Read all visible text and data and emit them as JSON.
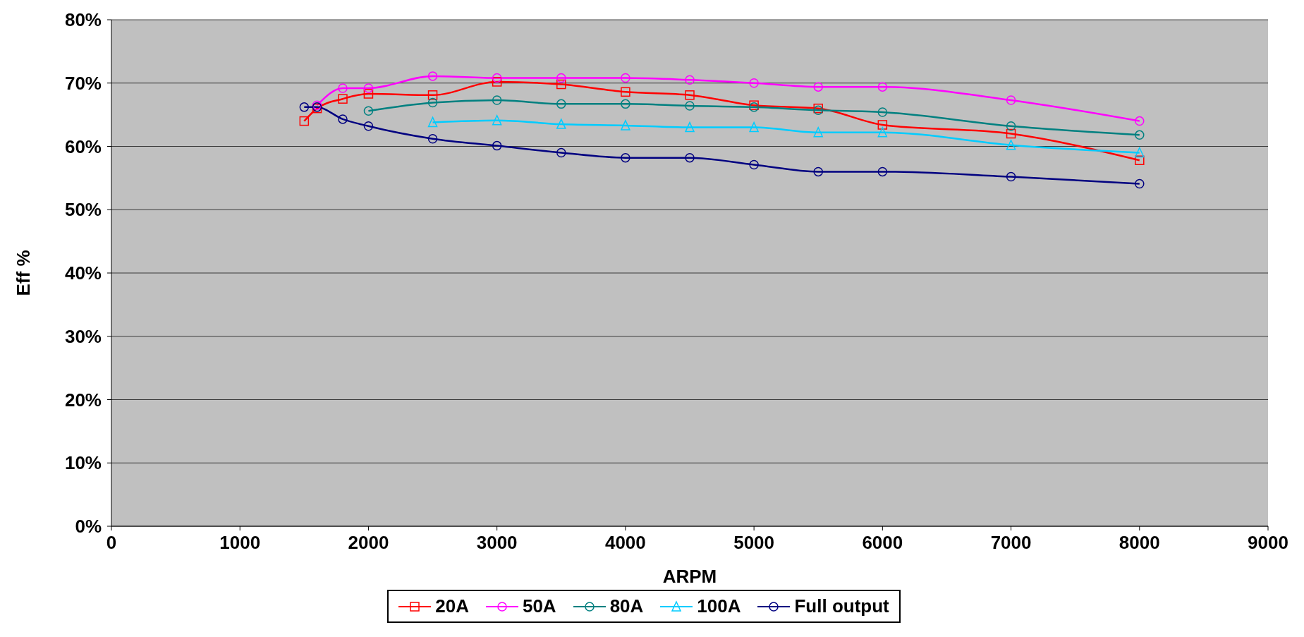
{
  "chart_data": {
    "type": "line",
    "xlabel": "ARPM",
    "ylabel": "Eff %",
    "xlim": [
      0,
      9000
    ],
    "xticks": [
      0,
      1000,
      2000,
      3000,
      4000,
      5000,
      6000,
      7000,
      8000,
      9000
    ],
    "ylim": [
      0,
      80
    ],
    "yticks": [
      {
        "value": 0,
        "label": "0%"
      },
      {
        "value": 10,
        "label": "10%"
      },
      {
        "value": 20,
        "label": "20%"
      },
      {
        "value": 30,
        "label": "30%"
      },
      {
        "value": 40,
        "label": "40%"
      },
      {
        "value": 50,
        "label": "50%"
      },
      {
        "value": 60,
        "label": "60%"
      },
      {
        "value": 70,
        "label": "70%"
      },
      {
        "value": 80,
        "label": "80%"
      }
    ],
    "grid": "y",
    "legend": "bottom",
    "series": [
      {
        "name": "20A",
        "color": "#ff0000",
        "marker": "square",
        "x": [
          1500,
          1600,
          1800,
          2000,
          2500,
          3000,
          3500,
          4000,
          4500,
          5000,
          5500,
          6000,
          7000,
          8000
        ],
        "values": [
          64,
          66,
          67.5,
          68.3,
          68.1,
          70.2,
          69.8,
          68.6,
          68.1,
          66.5,
          66,
          63.4,
          62,
          57.8
        ]
      },
      {
        "name": "50A",
        "color": "#ff00ff",
        "marker": "circle",
        "x": [
          1600,
          1800,
          2000,
          2500,
          3000,
          3500,
          4000,
          4500,
          5000,
          5500,
          6000,
          7000,
          8000
        ],
        "values": [
          66.5,
          69.2,
          69.2,
          71.1,
          70.8,
          70.8,
          70.8,
          70.5,
          70,
          69.4,
          69.4,
          67.3,
          64
        ]
      },
      {
        "name": "80A",
        "color": "#008080",
        "marker": "circle",
        "x": [
          2000,
          2500,
          3000,
          3500,
          4000,
          4500,
          5000,
          5500,
          6000,
          7000,
          8000
        ],
        "values": [
          65.6,
          66.9,
          67.3,
          66.7,
          66.7,
          66.4,
          66.2,
          65.7,
          65.4,
          63.2,
          61.8
        ]
      },
      {
        "name": "100A",
        "color": "#00ccff",
        "marker": "triangle",
        "x": [
          2500,
          3000,
          3500,
          4000,
          4500,
          5000,
          5500,
          6000,
          7000,
          8000
        ],
        "values": [
          63.8,
          64.1,
          63.5,
          63.3,
          63,
          63,
          62.2,
          62.2,
          60.2,
          59
        ]
      },
      {
        "name": "Full output",
        "color": "#000080",
        "marker": "circle",
        "x": [
          1500,
          1600,
          1800,
          2000,
          2500,
          3000,
          3500,
          4000,
          4500,
          5000,
          5500,
          6000,
          7000,
          8000
        ],
        "values": [
          66.2,
          66.2,
          64.3,
          63.2,
          61.2,
          60.1,
          59,
          58.2,
          58.2,
          57.1,
          56,
          56,
          55.2,
          54.1
        ]
      }
    ]
  }
}
